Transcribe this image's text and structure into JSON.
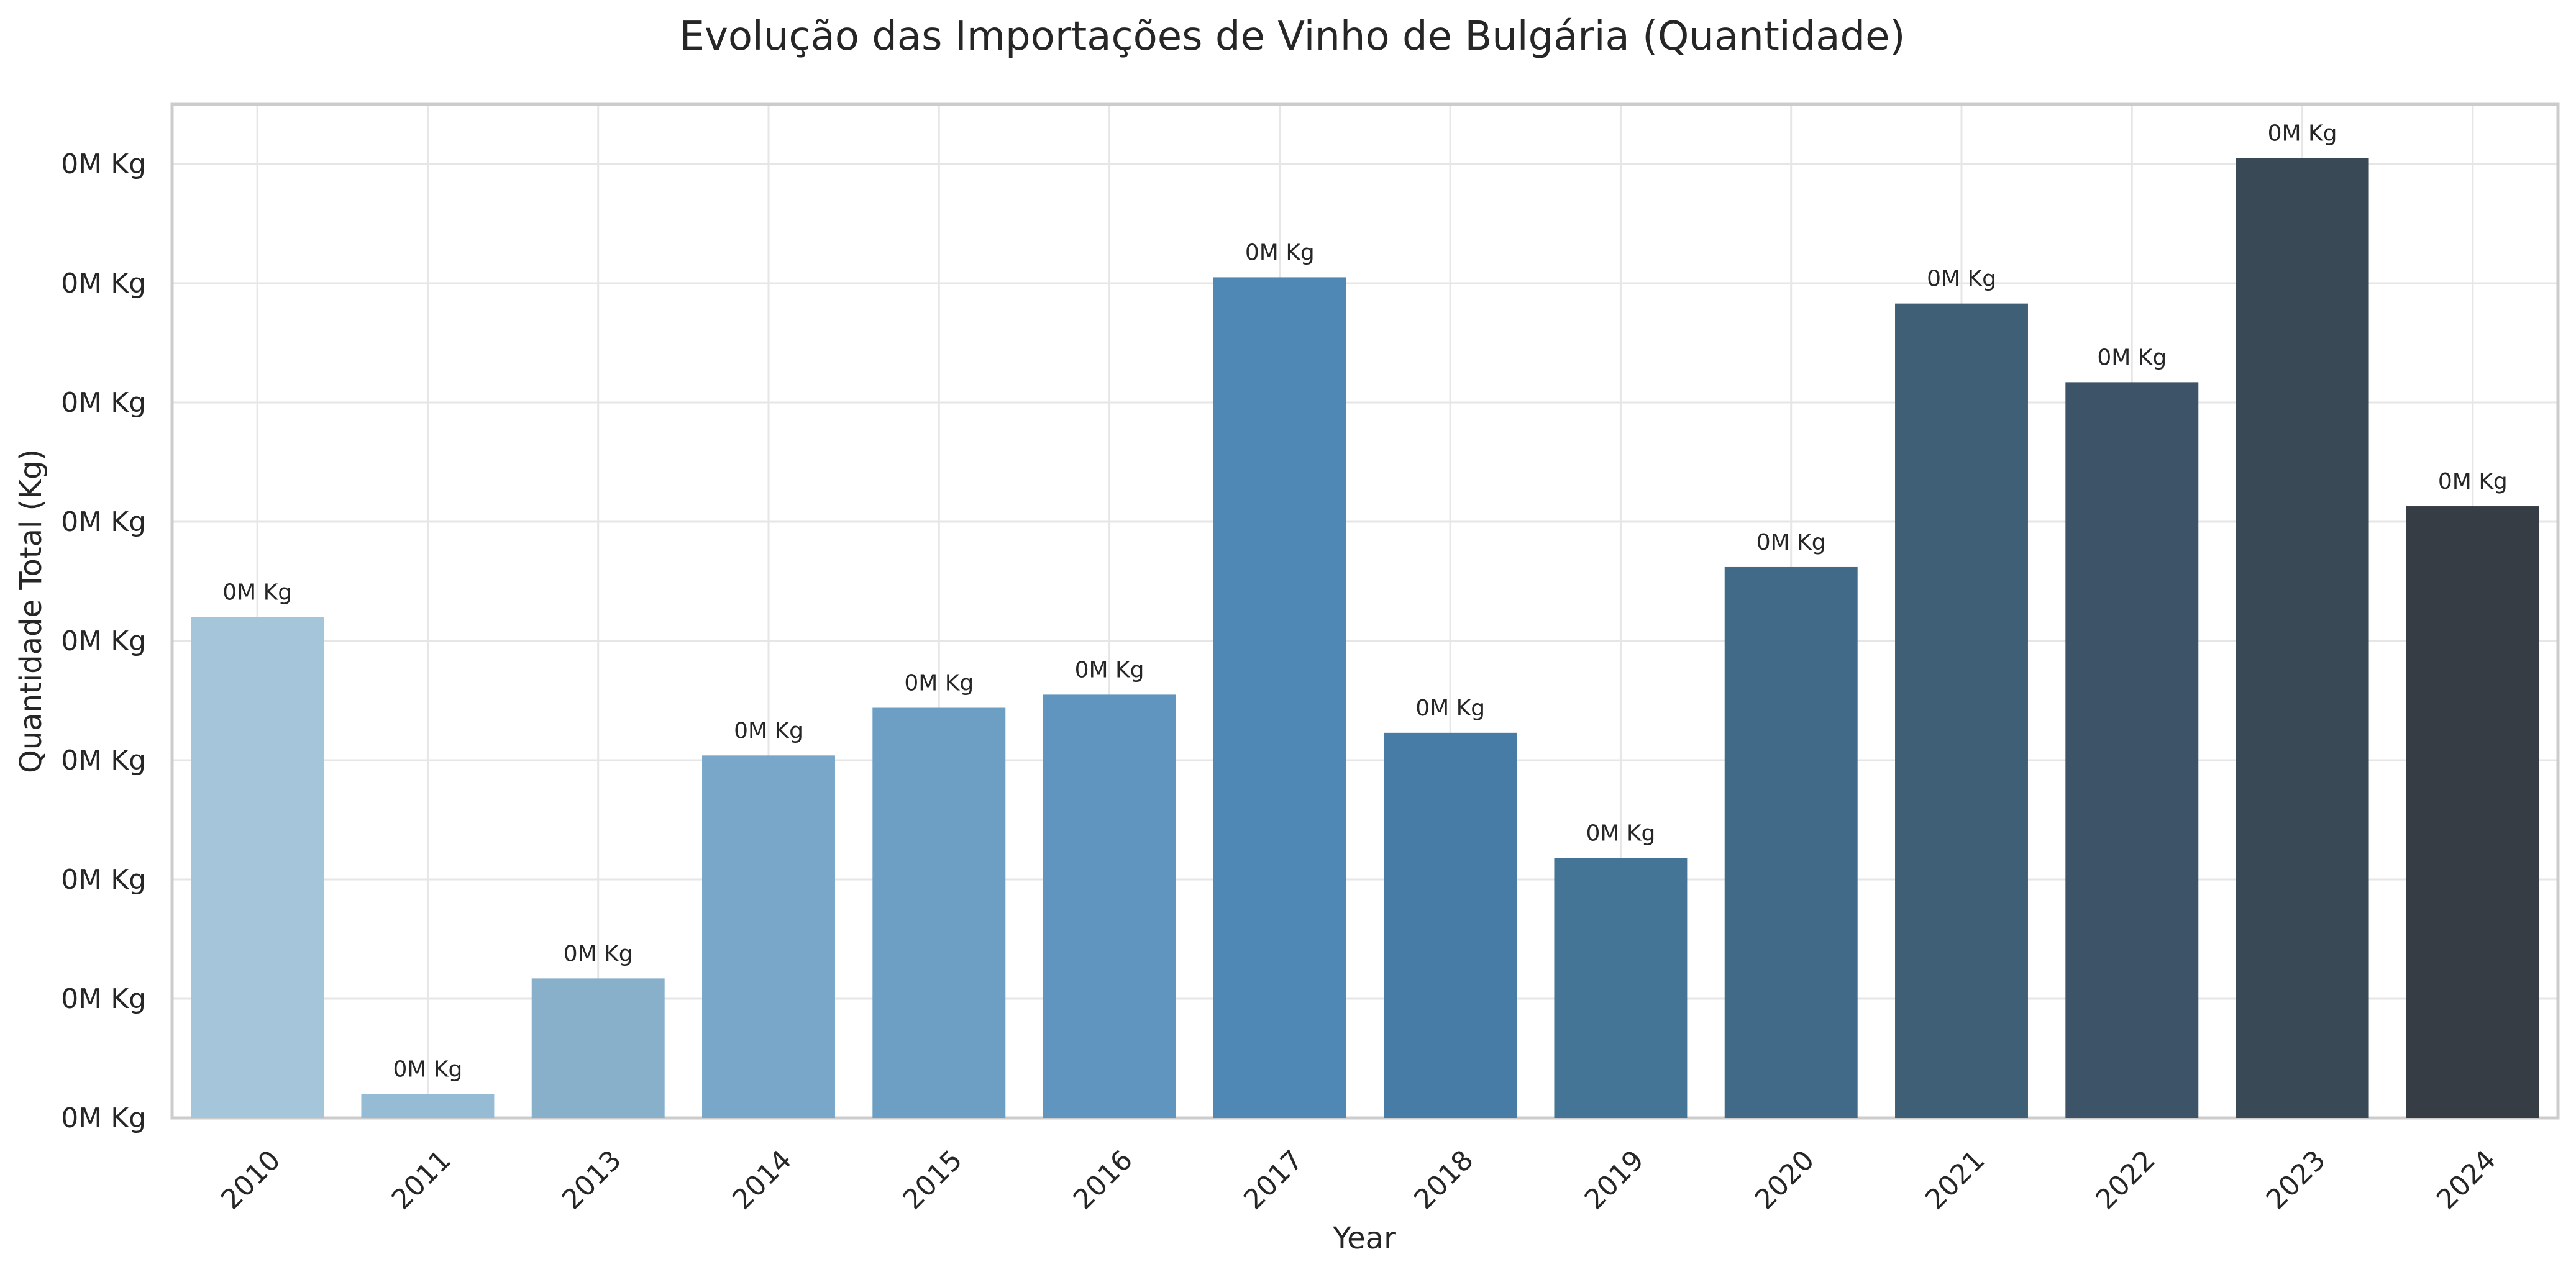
{
  "chart_data": {
    "type": "bar",
    "title": "Evolução das Importações de Vinho de Bulgária (Quantidade)",
    "xlabel": "Year",
    "ylabel": "Quantidade Total (Kg)",
    "categories": [
      "2010",
      "2011",
      "2013",
      "2014",
      "2015",
      "2016",
      "2017",
      "2018",
      "2019",
      "2020",
      "2021",
      "2022",
      "2023",
      "2024"
    ],
    "values": [
      4.2,
      0.2,
      1.17,
      3.04,
      3.44,
      3.55,
      7.05,
      3.23,
      2.18,
      4.62,
      6.83,
      6.17,
      8.05,
      5.13
    ],
    "data_labels": [
      "0M Kg",
      "0M Kg",
      "0M Kg",
      "0M Kg",
      "0M Kg",
      "0M Kg",
      "0M Kg",
      "0M Kg",
      "0M Kg",
      "0M Kg",
      "0M Kg",
      "0M Kg",
      "0M Kg",
      "0M Kg"
    ],
    "yticks": [
      0,
      1,
      2,
      3,
      4,
      5,
      6,
      7,
      8
    ],
    "ytick_labels": [
      "0M Kg",
      "0M Kg",
      "0M Kg",
      "0M Kg",
      "0M Kg",
      "0M Kg",
      "0M Kg",
      "0M Kg",
      "0M Kg"
    ],
    "ylim": [
      0,
      8.5
    ],
    "grid": true,
    "legend": "none",
    "colors": [
      "#a4c5da",
      "#95bbd5",
      "#88b0cb",
      "#79a7c9",
      "#6c9fc3",
      "#5f95be",
      "#4f88b5",
      "#477ca7",
      "#457596",
      "#416a88",
      "#3f5f77",
      "#3d5368",
      "#394a56",
      "#363d45"
    ]
  }
}
